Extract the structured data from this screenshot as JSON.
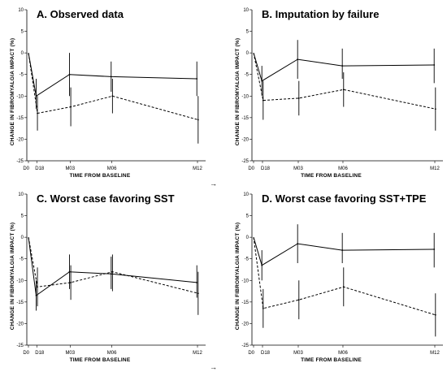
{
  "figure": {
    "arrows": [
      "→",
      "→"
    ]
  },
  "chart_data": [
    {
      "type": "line",
      "title": "A. Observed data",
      "xlabel": "TIME FROM BASELINE",
      "ylabel": "CHANGE IN FIBROMYALGIA IMPACT (%)",
      "x_ticks": [
        "D0",
        "D18",
        "M03",
        "M06",
        "M12"
      ],
      "x_days": [
        0,
        18,
        90,
        180,
        365
      ],
      "ylim": [
        -25,
        10
      ],
      "y_ticks": [
        10,
        5,
        0,
        -5,
        -10,
        -15,
        -20,
        -25
      ],
      "series": [
        {
          "style": "solid",
          "x_days": [
            0,
            18,
            90,
            180,
            365
          ],
          "values": [
            0,
            -10,
            -5,
            -5.5,
            -6
          ],
          "lower": [
            0,
            -13,
            -10,
            -9,
            -10
          ],
          "upper": [
            0,
            -6,
            0,
            -2,
            -2
          ]
        },
        {
          "style": "dashed",
          "x_days": [
            0,
            18,
            90,
            180,
            365
          ],
          "values": [
            0,
            -14,
            -12.5,
            -10,
            -15.5
          ],
          "lower": [
            0,
            -18,
            -17,
            -14,
            -21
          ],
          "upper": [
            0,
            -10,
            -8,
            -6,
            -10
          ]
        }
      ]
    },
    {
      "type": "line",
      "title": "B. Imputation by failure",
      "xlabel": "TIME FROM BASELINE",
      "ylabel": "CHANGE IN FIBROMYALGIA IMPACT (%)",
      "x_ticks": [
        "D0",
        "D18",
        "M03",
        "M06",
        "M12"
      ],
      "x_days": [
        0,
        18,
        90,
        180,
        365
      ],
      "ylim": [
        -25,
        10
      ],
      "y_ticks": [
        10,
        5,
        0,
        -5,
        -10,
        -15,
        -20,
        -25
      ],
      "series": [
        {
          "style": "solid",
          "x_days": [
            0,
            18,
            90,
            180,
            365
          ],
          "values": [
            0,
            -6.5,
            -1.5,
            -3,
            -2.8
          ],
          "lower": [
            0,
            -10,
            -6,
            -6,
            -7
          ],
          "upper": [
            0,
            -3,
            3,
            1,
            1
          ]
        },
        {
          "style": "dashed",
          "x_days": [
            0,
            18,
            90,
            180,
            365
          ],
          "values": [
            0,
            -11,
            -10.5,
            -8.5,
            -13
          ],
          "lower": [
            0,
            -15.5,
            -14.5,
            -12.5,
            -18
          ],
          "upper": [
            0,
            -6.5,
            -6.5,
            -4.5,
            -8
          ]
        }
      ]
    },
    {
      "type": "line",
      "title": "C. Worst case favoring SST",
      "xlabel": "TIME FROM BASELINE",
      "ylabel": "CHANGE IN FIBROMYALGIA IMPACT (%)",
      "x_ticks": [
        "D0",
        "D18",
        "M03",
        "M06",
        "M12"
      ],
      "x_days": [
        0,
        18,
        90,
        180,
        365
      ],
      "ylim": [
        -25,
        10
      ],
      "y_ticks": [
        10,
        5,
        0,
        -5,
        -10,
        -15,
        -20,
        -25
      ],
      "series": [
        {
          "style": "solid",
          "x_days": [
            0,
            18,
            90,
            180,
            365
          ],
          "values": [
            0,
            -13.5,
            -8,
            -8.5,
            -10.5
          ],
          "lower": [
            0,
            -17,
            -12,
            -12,
            -14
          ],
          "upper": [
            0,
            -10,
            -4,
            -4.5,
            -6.5
          ]
        },
        {
          "style": "dashed",
          "x_days": [
            0,
            18,
            90,
            180,
            365
          ],
          "values": [
            0,
            -11.5,
            -10.5,
            -8,
            -13
          ],
          "lower": [
            0,
            -16,
            -14.5,
            -12.5,
            -18
          ],
          "upper": [
            0,
            -7,
            -6.5,
            -4,
            -8
          ]
        }
      ]
    },
    {
      "type": "line",
      "title": "D. Worst case favoring SST+TPE",
      "xlabel": "TIME FROM BASELINE",
      "ylabel": "CHANGE IN FIBROMYALGIA IMPACT (%)",
      "x_ticks": [
        "D0",
        "D18",
        "M03",
        "M06",
        "M12"
      ],
      "x_days": [
        0,
        18,
        90,
        180,
        365
      ],
      "ylim": [
        -25,
        10
      ],
      "y_ticks": [
        10,
        5,
        0,
        -5,
        -10,
        -15,
        -20,
        -25
      ],
      "series": [
        {
          "style": "solid",
          "x_days": [
            0,
            18,
            90,
            180,
            365
          ],
          "values": [
            0,
            -6.5,
            -1.5,
            -3,
            -2.8
          ],
          "lower": [
            0,
            -10,
            -6,
            -6,
            -7
          ],
          "upper": [
            0,
            -3,
            3,
            1,
            1
          ]
        },
        {
          "style": "dashed",
          "x_days": [
            0,
            18,
            90,
            180,
            365
          ],
          "values": [
            0,
            -16.5,
            -14.5,
            -11.5,
            -18
          ],
          "lower": [
            0,
            -21,
            -19,
            -16,
            -23
          ],
          "upper": [
            0,
            -12,
            -10,
            -7,
            -13
          ]
        }
      ]
    }
  ]
}
